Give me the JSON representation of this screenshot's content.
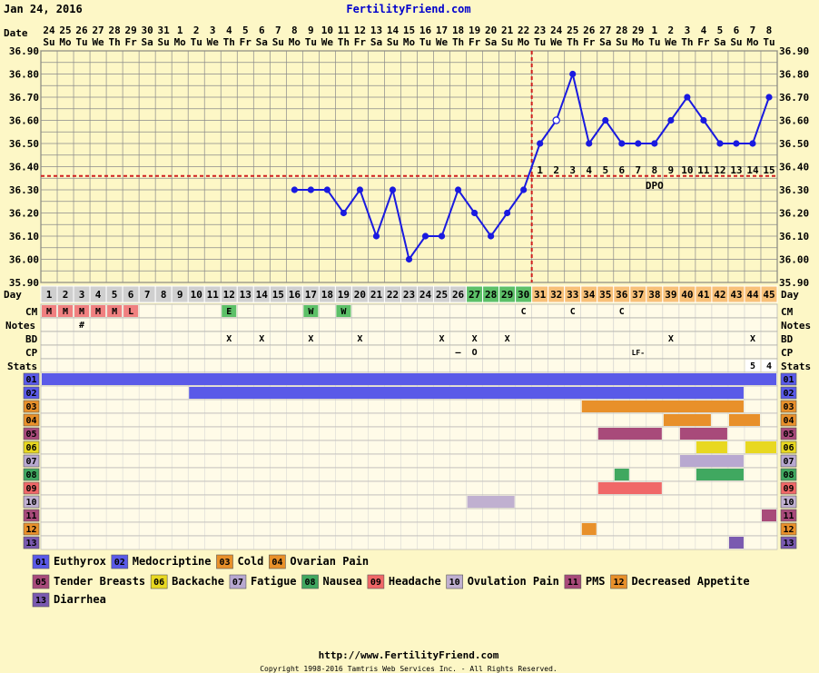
{
  "header": {
    "date": "Jan 24, 2016",
    "site": "FertilityFriend.com"
  },
  "labels": {
    "date": "Date",
    "day": "Day",
    "cm": "CM",
    "notes": "Notes",
    "bd": "BD",
    "cp": "CP",
    "stats": "Stats",
    "dpo": "DPO"
  },
  "chart_data": {
    "type": "line",
    "dates": [
      "24",
      "25",
      "26",
      "27",
      "28",
      "29",
      "30",
      "31",
      "1",
      "2",
      "3",
      "4",
      "5",
      "6",
      "7",
      "8",
      "9",
      "10",
      "11",
      "12",
      "13",
      "14",
      "15",
      "16",
      "17",
      "18",
      "19",
      "20",
      "21",
      "22",
      "23",
      "24",
      "25",
      "26",
      "27",
      "28",
      "29",
      "1",
      "2",
      "3",
      "4",
      "5",
      "6",
      "7",
      "8"
    ],
    "weekdays": [
      "Su",
      "Mo",
      "Tu",
      "We",
      "Th",
      "Fr",
      "Sa",
      "Su",
      "Mo",
      "Tu",
      "We",
      "Th",
      "Fr",
      "Sa",
      "Su",
      "Mo",
      "Tu",
      "We",
      "Th",
      "Fr",
      "Sa",
      "Su",
      "Mo",
      "Tu",
      "We",
      "Th",
      "Fr",
      "Sa",
      "Su",
      "Mo",
      "Tu",
      "We",
      "Th",
      "Fr",
      "Sa",
      "Su",
      "Mo",
      "Tu",
      "We",
      "Th",
      "Fr",
      "Sa",
      "Su",
      "Mo",
      "Tu"
    ],
    "cycle_days": [
      1,
      2,
      3,
      4,
      5,
      6,
      7,
      8,
      9,
      10,
      11,
      12,
      13,
      14,
      15,
      16,
      17,
      18,
      19,
      20,
      21,
      22,
      23,
      24,
      25,
      26,
      27,
      28,
      29,
      30,
      31,
      32,
      33,
      34,
      35,
      36,
      37,
      38,
      39,
      40,
      41,
      42,
      43,
      44,
      45
    ],
    "temperatures": [
      null,
      null,
      null,
      null,
      null,
      null,
      null,
      null,
      null,
      null,
      null,
      null,
      null,
      null,
      null,
      36.3,
      36.3,
      36.3,
      36.2,
      36.3,
      36.1,
      36.3,
      36.0,
      36.1,
      36.1,
      36.3,
      36.2,
      36.1,
      36.2,
      36.3,
      36.5,
      36.6,
      36.8,
      36.5,
      36.6,
      36.5,
      36.5,
      36.5,
      36.6,
      36.7,
      36.6,
      36.5,
      36.5,
      36.5,
      36.7
    ],
    "open_points": [
      32
    ],
    "ylim": [
      35.9,
      36.9
    ],
    "yticks": [
      "35.90",
      "36.00",
      "36.10",
      "36.20",
      "36.30",
      "36.40",
      "36.50",
      "36.60",
      "36.70",
      "36.80",
      "36.90"
    ],
    "coverline": 36.36,
    "ovulation_day": 30,
    "dpo_labels": [
      1,
      2,
      3,
      4,
      5,
      6,
      7,
      8,
      9,
      10,
      11,
      12,
      13,
      14,
      15
    ],
    "fertile_days": [
      27,
      28,
      29,
      30
    ],
    "cm": {
      "1": "M",
      "2": "M",
      "3": "M",
      "4": "M",
      "5": "M",
      "6": "L",
      "12": "E",
      "17": "W",
      "19": "W",
      "30": "C",
      "33": "C",
      "36": "C"
    },
    "notes": {
      "3": "#"
    },
    "bd": {
      "12": "X",
      "14": "X",
      "17": "X",
      "20": "X",
      "25": "X",
      "27": "X",
      "29": "X",
      "39": "X",
      "44": "X"
    },
    "cp": {
      "26": "–",
      "27": "O",
      "37": "LF-"
    },
    "stats": {
      "44": "5",
      "45": "4"
    },
    "symptoms": [
      {
        "code": "01",
        "name": "Euthyrox",
        "color": "#5a5ae8",
        "days": [
          [
            1,
            45
          ]
        ]
      },
      {
        "code": "02",
        "name": "Medocriptine",
        "color": "#5a5ae8",
        "days": [
          [
            10,
            43
          ]
        ]
      },
      {
        "code": "03",
        "name": "Cold",
        "color": "#e8902a",
        "days": [
          [
            34,
            43
          ]
        ]
      },
      {
        "code": "04",
        "name": "Ovarian Pain",
        "color": "#e8902a",
        "days": [
          [
            39,
            41
          ],
          [
            43,
            44
          ]
        ]
      },
      {
        "code": "05",
        "name": "Tender Breasts",
        "color": "#a84a7a",
        "days": [
          [
            35,
            38
          ],
          [
            40,
            42
          ]
        ]
      },
      {
        "code": "06",
        "name": "Backache",
        "color": "#e8d820",
        "days": [
          [
            41,
            42
          ],
          [
            44,
            45
          ]
        ]
      },
      {
        "code": "07",
        "name": "Fatigue",
        "color": "#b8a8d0",
        "days": [
          [
            40,
            43
          ]
        ]
      },
      {
        "code": "08",
        "name": "Nausea",
        "color": "#40a860",
        "days": [
          [
            36,
            36
          ],
          [
            41,
            43
          ]
        ]
      },
      {
        "code": "09",
        "name": "Headache",
        "color": "#f06868",
        "days": [
          [
            35,
            38
          ]
        ]
      },
      {
        "code": "10",
        "name": "Ovulation Pain",
        "color": "#c0b0d0",
        "days": [
          [
            27,
            29
          ]
        ]
      },
      {
        "code": "11",
        "name": "PMS",
        "color": "#a84a7a",
        "days": [
          [
            45,
            45
          ]
        ]
      },
      {
        "code": "12",
        "name": "Decreased Appetite",
        "color": "#e8902a",
        "days": [
          [
            34,
            34
          ]
        ]
      },
      {
        "code": "13",
        "name": "Diarrhea",
        "color": "#7a5ab0",
        "days": [
          [
            43,
            43
          ]
        ]
      }
    ]
  },
  "footer": {
    "url": "http://www.FertilityFriend.com",
    "copyright": "Copyright 1998-2016 Tamtris Web Services Inc. - All Rights Reserved."
  },
  "colors": {
    "background": "#fdf7c6",
    "temperature_line": "#1a1ae0",
    "coverline": "#d02020",
    "grid": "#8a8a8a",
    "fertile": "#5cc068",
    "post_ovulation": "#f8c078",
    "day_cell": "#cfcfcf",
    "cm_menstrual": "#f08080",
    "cm_fertile": "#5cc068"
  }
}
